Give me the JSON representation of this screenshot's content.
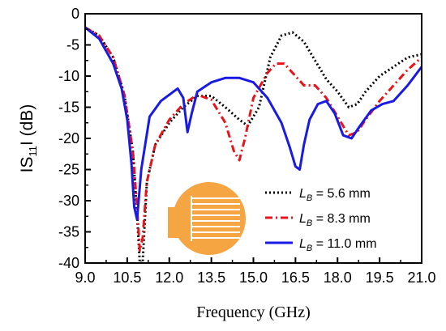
{
  "chart_data": {
    "type": "line",
    "xlabel": "Frequency (GHz)",
    "ylabel_parts": {
      "pre": "IS",
      "sub": "11",
      "post": "I (dB)"
    },
    "xlim": [
      9.0,
      21.0
    ],
    "ylim": [
      -40,
      0
    ],
    "xticks": [
      9.0,
      10.5,
      12.0,
      13.5,
      15.0,
      16.5,
      18.0,
      19.5,
      21.0
    ],
    "xtick_labels": [
      "9.0",
      "10.5",
      "12.0",
      "13.5",
      "15.0",
      "16.5",
      "18.0",
      "19.5",
      "21.0"
    ],
    "yticks": [
      0,
      -5,
      -10,
      -15,
      -20,
      -25,
      -30,
      -35,
      -40
    ],
    "ytick_labels": [
      "0",
      "-5",
      "-10",
      "-15",
      "-20",
      "-25",
      "-30",
      "-35",
      "-40"
    ],
    "grid": false,
    "legend_position": "lower-right",
    "series": [
      {
        "label_var": "L",
        "label_sub": "B",
        "label_value": " = 5.6 mm",
        "color": "#000000",
        "dash": "2,3",
        "x": [
          9.0,
          9.5,
          10.0,
          10.4,
          10.7,
          10.85,
          10.95,
          11.05,
          11.2,
          11.5,
          12.0,
          12.5,
          13.0,
          13.5,
          14.0,
          14.5,
          14.8,
          15.2,
          15.6,
          16.0,
          16.4,
          16.8,
          17.2,
          17.6,
          18.0,
          18.4,
          18.7,
          19.0,
          19.5,
          20.0,
          20.5,
          21.0
        ],
        "y": [
          -2.2,
          -3.5,
          -7.0,
          -13.0,
          -22.0,
          -32.0,
          -40.0,
          -40.0,
          -27.0,
          -21.0,
          -17.5,
          -15.0,
          -13.2,
          -13.2,
          -15.0,
          -17.0,
          -18.0,
          -15.0,
          -7.0,
          -3.5,
          -3.0,
          -4.5,
          -7.5,
          -10.5,
          -12.5,
          -15.0,
          -14.5,
          -12.5,
          -10.0,
          -8.5,
          -7.0,
          -6.5
        ]
      },
      {
        "label_var": "L",
        "label_sub": "B",
        "label_value": " = 8.3 mm",
        "color": "#e8141b",
        "dash": "9,4,2,4",
        "x": [
          9.0,
          9.5,
          10.0,
          10.4,
          10.7,
          10.85,
          10.95,
          11.05,
          11.2,
          11.5,
          12.0,
          12.5,
          13.0,
          13.5,
          14.0,
          14.3,
          14.5,
          14.7,
          15.0,
          15.5,
          15.8,
          16.1,
          16.4,
          16.8,
          17.2,
          17.6,
          18.0,
          18.4,
          18.7,
          19.0,
          19.5,
          20.0,
          20.5,
          21.0
        ],
        "y": [
          -2.2,
          -3.5,
          -7.0,
          -13.0,
          -22.0,
          -31.0,
          -38.0,
          -36.0,
          -27.0,
          -21.0,
          -17.0,
          -14.5,
          -13.0,
          -13.8,
          -17.5,
          -22.0,
          -23.5,
          -20.0,
          -13.5,
          -9.5,
          -8.0,
          -8.0,
          -9.5,
          -11.5,
          -11.5,
          -13.5,
          -16.5,
          -19.5,
          -19.0,
          -17.0,
          -14.0,
          -11.5,
          -9.0,
          -7.0
        ]
      },
      {
        "label_var": "L",
        "label_sub": "B",
        "label_value": " = 11.0 mm",
        "color": "#1a1ae6",
        "dash": "",
        "x": [
          9.0,
          9.5,
          10.0,
          10.3,
          10.5,
          10.65,
          10.75,
          10.85,
          11.0,
          11.3,
          11.7,
          12.0,
          12.3,
          12.5,
          12.65,
          12.8,
          13.0,
          13.5,
          14.0,
          14.5,
          15.0,
          15.5,
          16.0,
          16.3,
          16.5,
          16.65,
          16.8,
          17.0,
          17.3,
          17.6,
          17.9,
          18.2,
          18.5,
          18.8,
          19.2,
          19.6,
          20.0,
          20.5,
          21.0
        ],
        "y": [
          -2.2,
          -4.0,
          -8.0,
          -12.0,
          -17.0,
          -24.0,
          -31.0,
          -33.0,
          -25.0,
          -16.5,
          -14.0,
          -13.0,
          -12.0,
          -13.5,
          -19.0,
          -16.0,
          -12.5,
          -11.0,
          -10.3,
          -10.3,
          -11.0,
          -13.5,
          -17.5,
          -21.5,
          -24.5,
          -25.0,
          -21.0,
          -17.0,
          -14.5,
          -14.0,
          -16.0,
          -19.5,
          -20.0,
          -18.0,
          -15.5,
          -14.5,
          -14.0,
          -11.5,
          -8.5
        ]
      }
    ]
  },
  "inset_image": {
    "description_icon": "antenna-icon",
    "color": "#f5a542"
  }
}
